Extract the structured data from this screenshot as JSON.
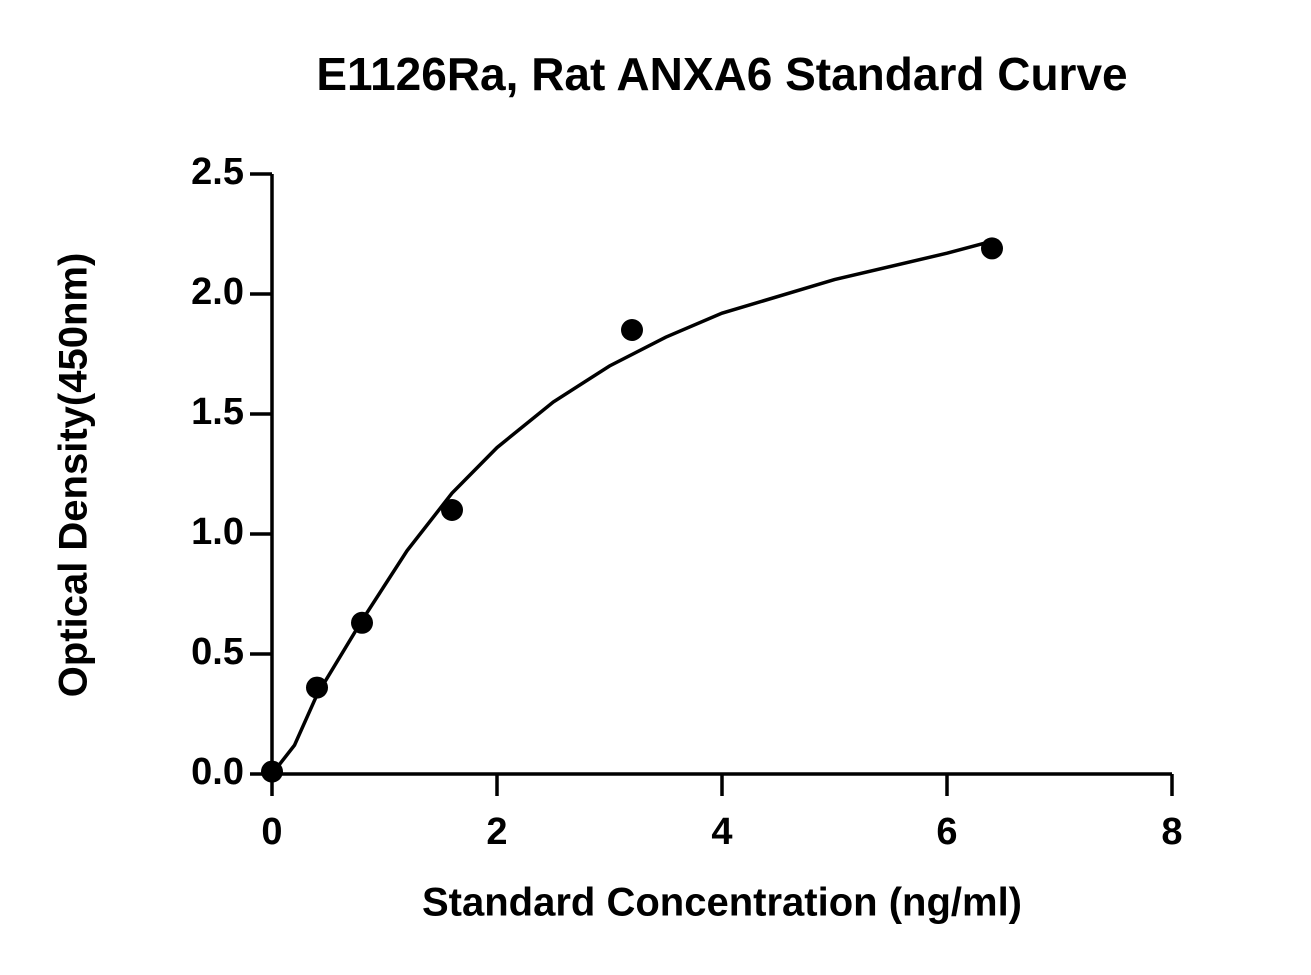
{
  "chart_data": {
    "type": "scatter",
    "title": "E1126Ra, Rat ANXA6 Standard Curve",
    "x_label": "Standard Concentration (ng/ml)",
    "y_label": "Optical Density(450nm)",
    "series": [
      {
        "x": [
          0,
          0.4,
          0.8,
          1.6,
          3.2,
          6.4
        ],
        "values": [
          0.01,
          0.36,
          0.63,
          1.1,
          1.85,
          2.19
        ],
        "color": "#000000"
      }
    ],
    "curve": {
      "x": [
        0,
        0.2,
        0.4,
        0.8,
        1.2,
        1.6,
        2,
        2.5,
        3,
        3.5,
        4,
        5,
        6,
        6.4
      ],
      "y": [
        0,
        0.12,
        0.33,
        0.64,
        0.93,
        1.17,
        1.36,
        1.55,
        1.7,
        1.82,
        1.92,
        2.06,
        2.17,
        2.22
      ],
      "color": "#000000"
    },
    "xlim": [
      0,
      8
    ],
    "xticks": [
      0,
      2,
      4,
      6,
      8
    ],
    "ylim": [
      0,
      2.5
    ],
    "yticks": [
      {
        "value": 0,
        "label": "0.0"
      },
      {
        "value": 0.5,
        "label": "0.5"
      },
      {
        "value": 1,
        "label": "1.0"
      },
      1.5,
      {
        "value": 2,
        "label": "2.0"
      },
      2.5
    ]
  }
}
